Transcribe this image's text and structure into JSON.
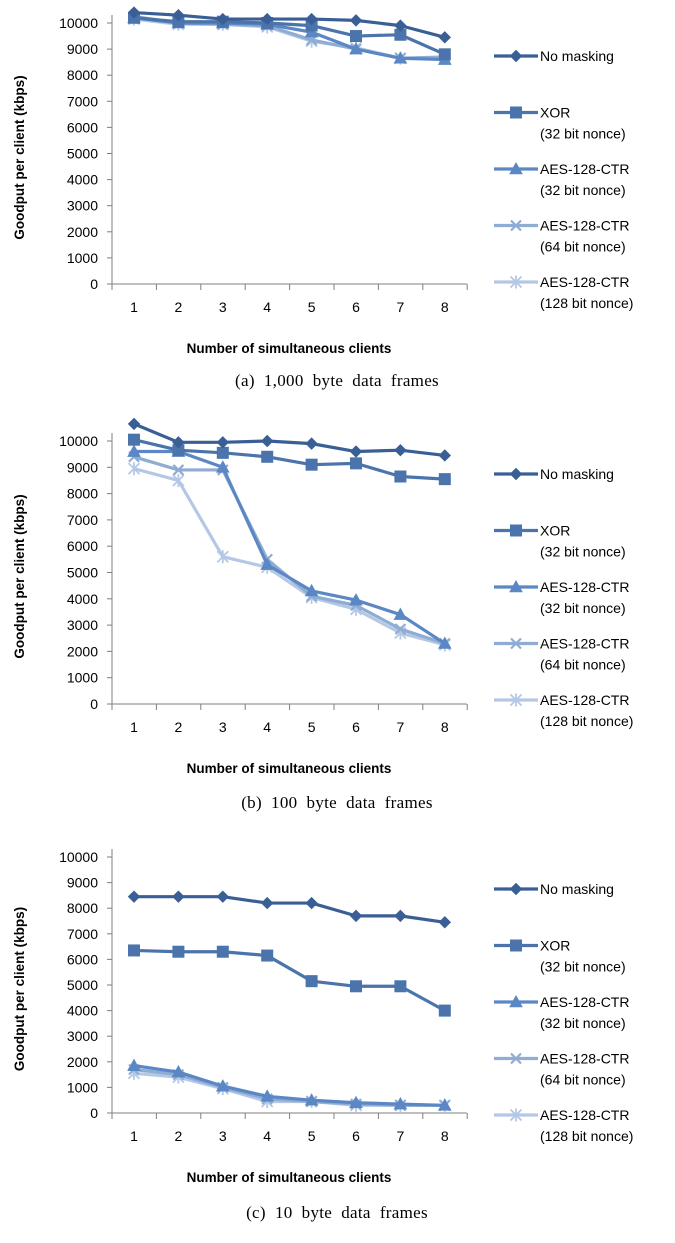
{
  "chart_data": [
    {
      "type": "line",
      "caption": "(a)  1,000  byte  data  frames",
      "xlabel": "Number of simultaneous clients",
      "ylabel": "Goodput per client (kbps)",
      "ylim": [
        0,
        10000
      ],
      "yticks": [
        0,
        1000,
        2000,
        3000,
        4000,
        5000,
        6000,
        7000,
        8000,
        9000,
        10000
      ],
      "categories": [
        "1",
        "2",
        "3",
        "4",
        "5",
        "6",
        "7",
        "8"
      ],
      "legend_position": "right",
      "series": [
        {
          "name": "No masking",
          "name_lines": [
            "No masking"
          ],
          "marker": "diamond",
          "color": "#3a5f96",
          "values": [
            10400,
            10300,
            10150,
            10150,
            10150,
            10100,
            9900,
            9450
          ]
        },
        {
          "name": "XOR (32 bit nonce)",
          "name_lines": [
            "XOR",
            "(32 bit nonce)"
          ],
          "marker": "square",
          "color": "#4a74ab",
          "values": [
            10200,
            10050,
            10050,
            10000,
            9900,
            9500,
            9550,
            8800
          ]
        },
        {
          "name": "AES-128-CTR (32 bit nonce)",
          "name_lines": [
            "AES-128-CTR",
            "(32 bit nonce)"
          ],
          "marker": "triangle",
          "color": "#5b88c4",
          "values": [
            10200,
            10000,
            10000,
            9950,
            9650,
            9000,
            8650,
            8600
          ]
        },
        {
          "name": "AES-128-CTR (64 bit nonce)",
          "name_lines": [
            "AES-128-CTR",
            "(64 bit nonce)"
          ],
          "marker": "x",
          "color": "#8facd4",
          "values": [
            10250,
            10000,
            9950,
            9900,
            9350,
            9000,
            8650,
            8700
          ]
        },
        {
          "name": "AES-128-CTR (128 bit nonce)",
          "name_lines": [
            "AES-128-CTR",
            "(128 bit nonce)"
          ],
          "marker": "star",
          "color": "#b4c8e6",
          "values": [
            10150,
            9950,
            9950,
            9850,
            9300,
            9050,
            8650,
            8650
          ]
        }
      ]
    },
    {
      "type": "line",
      "caption": "(b)  100  byte  data  frames",
      "xlabel": "Number of simultaneous clients",
      "ylabel": "Goodput per client (kbps)",
      "ylim": [
        0,
        10000
      ],
      "yticks": [
        0,
        1000,
        2000,
        3000,
        4000,
        5000,
        6000,
        7000,
        8000,
        9000,
        10000
      ],
      "categories": [
        "1",
        "2",
        "3",
        "4",
        "5",
        "6",
        "7",
        "8"
      ],
      "legend_position": "right",
      "series": [
        {
          "name": "No masking",
          "name_lines": [
            "No masking"
          ],
          "marker": "diamond",
          "color": "#3a5f96",
          "values": [
            10650,
            9950,
            9950,
            10000,
            9900,
            9600,
            9650,
            9450
          ]
        },
        {
          "name": "XOR (32 bit nonce)",
          "name_lines": [
            "XOR",
            "(32 bit nonce)"
          ],
          "marker": "square",
          "color": "#4a74ab",
          "values": [
            10050,
            9650,
            9550,
            9400,
            9100,
            9150,
            8650,
            8550
          ]
        },
        {
          "name": "AES-128-CTR (32 bit nonce)",
          "name_lines": [
            "AES-128-CTR",
            "(32 bit nonce)"
          ],
          "marker": "triangle",
          "color": "#5b88c4",
          "values": [
            9600,
            9600,
            9000,
            5300,
            4300,
            3950,
            3400,
            2300
          ]
        },
        {
          "name": "AES-128-CTR (64 bit nonce)",
          "name_lines": [
            "AES-128-CTR",
            "(64 bit nonce)"
          ],
          "marker": "x",
          "color": "#8facd4",
          "values": [
            9400,
            8900,
            8900,
            5500,
            4100,
            3750,
            2850,
            2300
          ]
        },
        {
          "name": "AES-128-CTR (128 bit nonce)",
          "name_lines": [
            "AES-128-CTR",
            "(128 bit nonce)"
          ],
          "marker": "star",
          "color": "#b4c8e6",
          "values": [
            8950,
            8500,
            5600,
            5200,
            4050,
            3600,
            2700,
            2250
          ]
        }
      ]
    },
    {
      "type": "line",
      "caption": "(c)  10  byte  data  frames",
      "xlabel": "Number of simultaneous clients",
      "ylabel": "Goodput per client (kbps)",
      "ylim": [
        0,
        10000
      ],
      "yticks": [
        0,
        1000,
        2000,
        3000,
        4000,
        5000,
        6000,
        7000,
        8000,
        9000,
        10000
      ],
      "categories": [
        "1",
        "2",
        "3",
        "4",
        "5",
        "6",
        "7",
        "8"
      ],
      "legend_position": "right",
      "series": [
        {
          "name": "No masking",
          "name_lines": [
            "No masking"
          ],
          "marker": "diamond",
          "color": "#3a5f96",
          "values": [
            8450,
            8450,
            8450,
            8200,
            8200,
            7700,
            7700,
            7450
          ]
        },
        {
          "name": "XOR (32 bit nonce)",
          "name_lines": [
            "XOR",
            "(32 bit nonce)"
          ],
          "marker": "square",
          "color": "#4a74ab",
          "values": [
            6350,
            6300,
            6300,
            6150,
            5150,
            4950,
            4950,
            4000
          ]
        },
        {
          "name": "AES-128-CTR (32 bit nonce)",
          "name_lines": [
            "AES-128-CTR",
            "(32 bit nonce)"
          ],
          "marker": "triangle",
          "color": "#5b88c4",
          "values": [
            1850,
            1600,
            1050,
            650,
            500,
            400,
            350,
            300
          ]
        },
        {
          "name": "AES-128-CTR (64 bit nonce)",
          "name_lines": [
            "AES-128-CTR",
            "(64 bit nonce)"
          ],
          "marker": "x",
          "color": "#8facd4",
          "values": [
            1700,
            1500,
            1000,
            550,
            450,
            350,
            300,
            300
          ]
        },
        {
          "name": "AES-128-CTR (128 bit nonce)",
          "name_lines": [
            "AES-128-CTR",
            "(128 bit nonce)"
          ],
          "marker": "star",
          "color": "#b4c8e6",
          "values": [
            1550,
            1400,
            950,
            450,
            450,
            300,
            300,
            300
          ]
        }
      ]
    }
  ]
}
